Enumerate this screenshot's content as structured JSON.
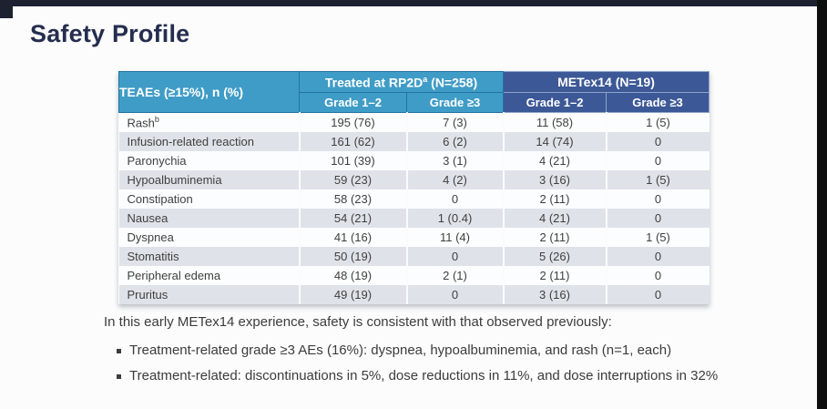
{
  "page": {
    "title": "Safety Profile"
  },
  "table": {
    "corner_header": "TEAEs (≥15%), n (%)",
    "groups": [
      {
        "pre": "Treated at RP2D",
        "sup": "a",
        "post": " (N=258)"
      },
      {
        "pre": "METex14 (N=19)",
        "sup": "",
        "post": ""
      }
    ],
    "subheaders": [
      "Grade 1–2",
      "Grade ≥3",
      "Grade 1–2",
      "Grade ≥3"
    ],
    "rows": [
      {
        "label": "Rash",
        "sup": "b",
        "values": [
          "195 (76)",
          "7 (3)",
          "11 (58)",
          "1 (5)"
        ]
      },
      {
        "label": "Infusion-related reaction",
        "sup": "",
        "values": [
          "161 (62)",
          "6 (2)",
          "14 (74)",
          "0"
        ]
      },
      {
        "label": "Paronychia",
        "sup": "",
        "values": [
          "101 (39)",
          "3 (1)",
          "4 (21)",
          "0"
        ]
      },
      {
        "label": "Hypoalbuminemia",
        "sup": "",
        "values": [
          "59 (23)",
          "4 (2)",
          "3 (16)",
          "1 (5)"
        ]
      },
      {
        "label": "Constipation",
        "sup": "",
        "values": [
          "58 (23)",
          "0",
          "2 (11)",
          "0"
        ]
      },
      {
        "label": "Nausea",
        "sup": "",
        "values": [
          "54 (21)",
          "1 (0.4)",
          "4 (21)",
          "0"
        ]
      },
      {
        "label": "Dyspnea",
        "sup": "",
        "values": [
          "41 (16)",
          "11 (4)",
          "2 (11)",
          "1 (5)"
        ]
      },
      {
        "label": "Stomatitis",
        "sup": "",
        "values": [
          "50 (19)",
          "0",
          "5 (26)",
          "0"
        ]
      },
      {
        "label": "Peripheral edema",
        "sup": "",
        "values": [
          "48 (19)",
          "2 (1)",
          "2 (11)",
          "0"
        ]
      },
      {
        "label": "Pruritus",
        "sup": "",
        "values": [
          "49 (19)",
          "0",
          "3 (16)",
          "0"
        ]
      }
    ]
  },
  "footer": {
    "intro": "In this early METex14 experience, safety is consistent with that observed previously:",
    "bullets": [
      "Treatment-related grade ≥3 AEs (16%): dyspnea, hypoalbuminemia, and rash (n=1, each)",
      "Treatment-related: discontinuations in 5%, dose reductions in 11%, and dose interruptions in 32%"
    ]
  },
  "colors": {
    "header_blue": "#3F9CC6",
    "header_navy": "#3C5896",
    "row_stripe": "#DFE3E9",
    "title_navy": "#262E4E"
  }
}
